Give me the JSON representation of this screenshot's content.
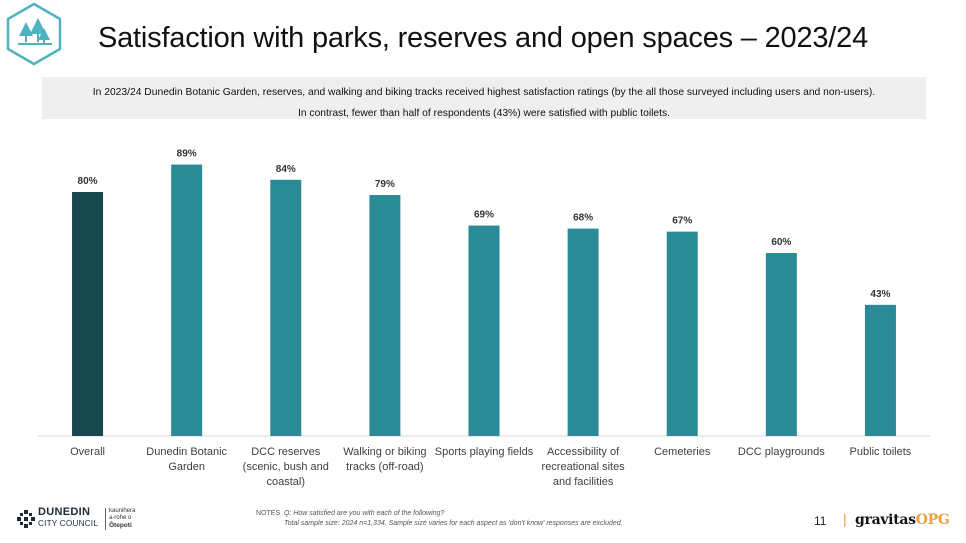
{
  "slide": {
    "title": "Satisfaction with parks, reserves and open spaces – 2023/24",
    "summary_line1": "In 2023/24 Dunedin Botanic Garden, reserves, and walking and biking tracks received highest satisfaction ratings (by the all those surveyed including users and non-users).",
    "summary_line2": "In contrast, fewer than half of respondents (43%) were satisfied with public toilets.",
    "notes_label": "NOTES",
    "notes_line1": "Q: How satisfied are you with each of the following?",
    "notes_line2": "Total sample size: 2024 n=1,334. Sample size varies  for each aspect as 'don't know' responses are excluded.",
    "page_number": "11",
    "separator": "|"
  },
  "logos": {
    "top_icon": "trees-hexagon-icon",
    "dcc_name": "DUNEDIN",
    "dcc_sub": "CITY COUNCIL",
    "dcc_maori_1": "kaunihera",
    "dcc_maori_2": "a-rohe o",
    "dcc_maori_3": "Ōtepoti",
    "brand_main": "gravitas",
    "brand_accent": "OPG"
  },
  "colors": {
    "overall_bar": "#17474f",
    "aspect_bar": "#2a8a96",
    "accent": "#e8a33c",
    "logo_teal": "#4fb3bf"
  },
  "chart_data": {
    "type": "bar",
    "categories": [
      [
        "Overall"
      ],
      [
        "Dunedin Botanic",
        "Garden"
      ],
      [
        "DCC reserves",
        "(scenic, bush and",
        "coastal)"
      ],
      [
        "Walking or biking",
        "tracks (off-road)"
      ],
      [
        "Sports playing fields"
      ],
      [
        "Accessibility of",
        "recreational sites",
        "and facilities"
      ],
      [
        "Cemeteries"
      ],
      [
        "DCC playgrounds"
      ],
      [
        "Public toilets"
      ]
    ],
    "values": [
      80,
      89,
      84,
      79,
      69,
      68,
      67,
      60,
      43
    ],
    "data_labels": [
      "80%",
      "89%",
      "84%",
      "79%",
      "69%",
      "68%",
      "67%",
      "60%",
      "43%"
    ],
    "ylim": [
      0,
      100
    ],
    "grid": false,
    "legend": "none"
  }
}
